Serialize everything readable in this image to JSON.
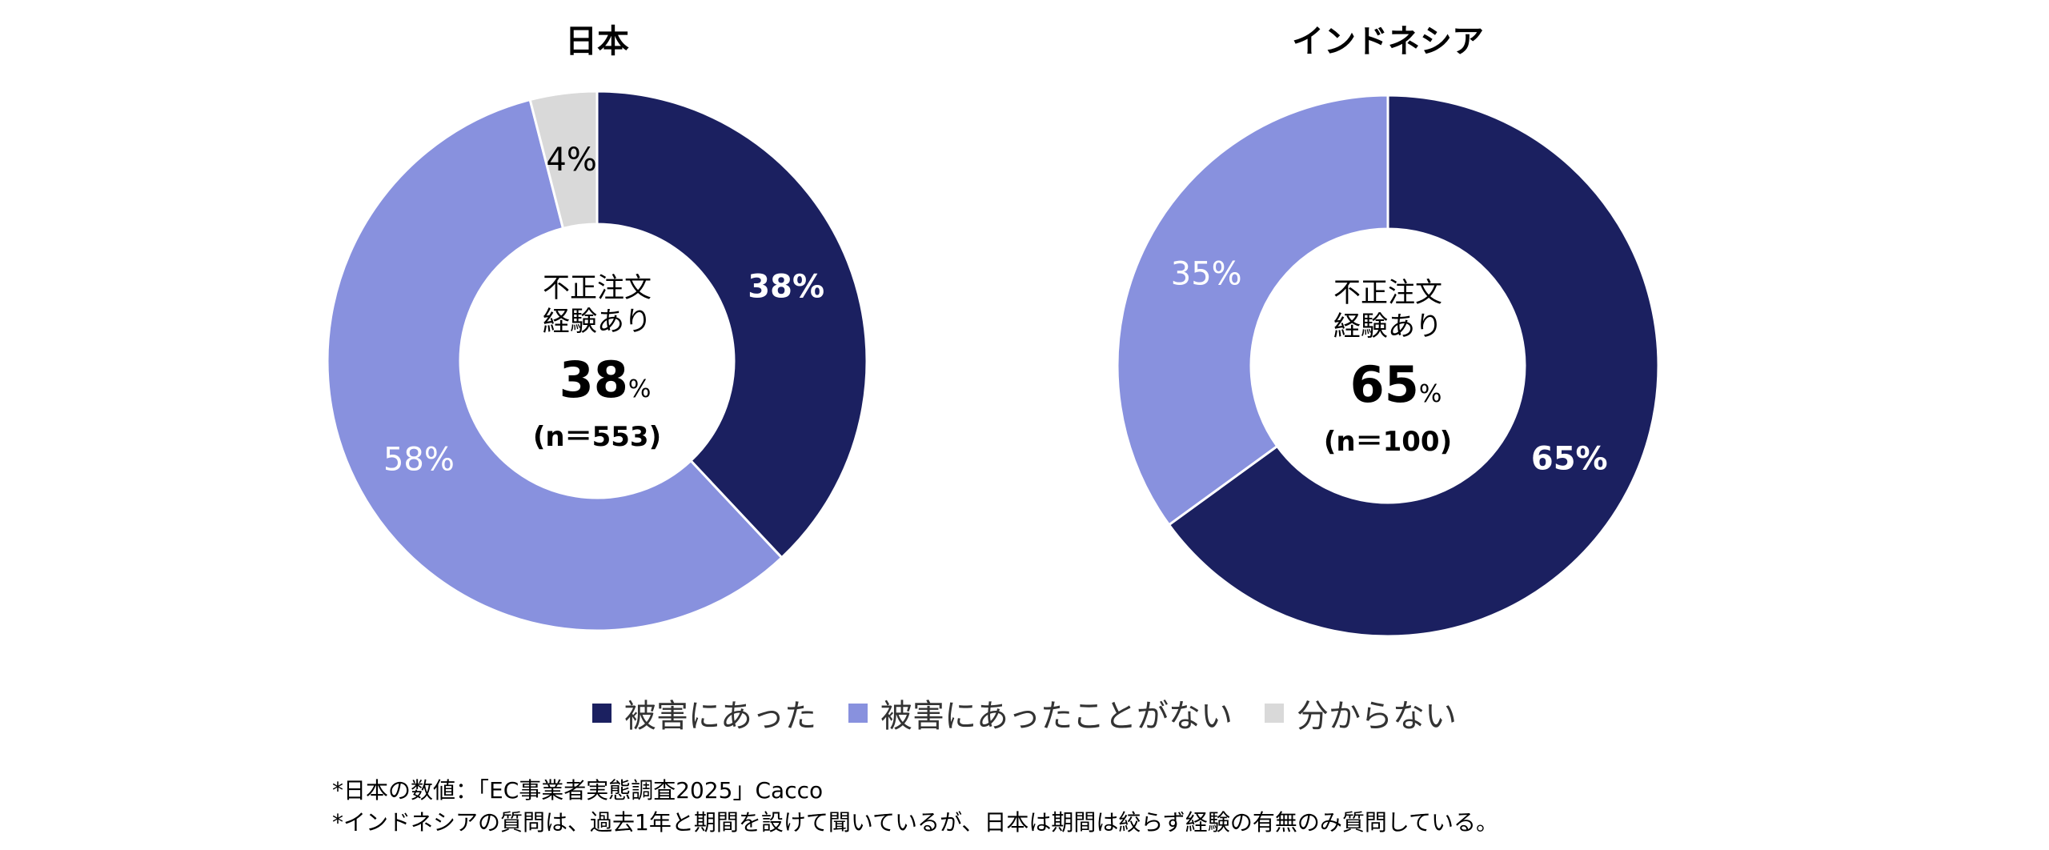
{
  "colors": {
    "damaged": "#1b2060",
    "not_damaged": "#8891de",
    "unknown": "#d9d9d9"
  },
  "chart_data": [
    {
      "type": "pie",
      "donut": true,
      "title": "日本",
      "categories": [
        "被害にあった",
        "被害にあったことがない",
        "分からない"
      ],
      "values": [
        38,
        58,
        4
      ],
      "data_labels": [
        "38%",
        "58%",
        "4%"
      ],
      "center": {
        "line1": "不正注文",
        "line2": "経験あり",
        "value": "38",
        "unit": "%",
        "n": "(n＝553)"
      }
    },
    {
      "type": "pie",
      "donut": true,
      "title": "インドネシア",
      "categories": [
        "被害にあった",
        "被害にあったことがない"
      ],
      "values": [
        65,
        35
      ],
      "data_labels": [
        "65%",
        "35%"
      ],
      "center": {
        "line1": "不正注文",
        "line2": "経験あり",
        "value": "65",
        "unit": "%",
        "n": "(n＝100)"
      }
    }
  ],
  "legend": [
    {
      "label": "被害にあった",
      "color": "#1b2060"
    },
    {
      "label": "被害にあったことがない",
      "color": "#8891de"
    },
    {
      "label": "分からない",
      "color": "#d9d9d9"
    }
  ],
  "notes": [
    "*日本の数値：「EC事業者実態調査2025」Cacco",
    "*インドネシアの質問は、過去1年と期間を設けて聞いているが、日本は期間は絞らず経験の有無のみ質問している。"
  ]
}
